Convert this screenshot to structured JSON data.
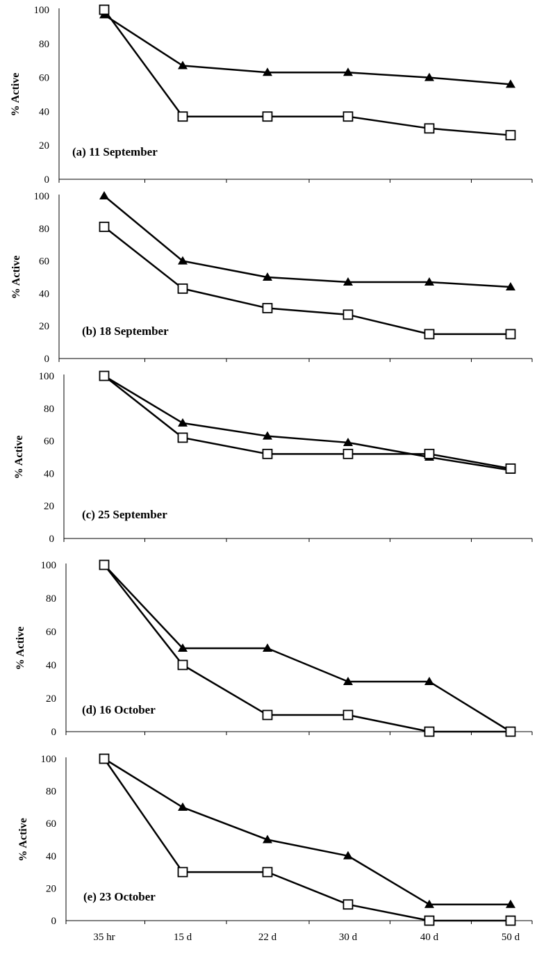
{
  "chart_data": [
    {
      "type": "line",
      "title": "(a) 11 September",
      "xlabel": "",
      "ylabel": "% Active",
      "ylim": [
        0,
        100
      ],
      "yticks": [
        0,
        20,
        40,
        60,
        80,
        100
      ],
      "categories": [
        "35 hr",
        "15 d",
        "22 d",
        "30 d",
        "40 d",
        "50 d"
      ],
      "grid": false,
      "series": [
        {
          "marker": "filled-triangle",
          "color": "#000000",
          "values": [
            97,
            67,
            63,
            63,
            60,
            56
          ]
        },
        {
          "marker": "open-square",
          "color": "#000000",
          "values": [
            100,
            37,
            37,
            37,
            30,
            26
          ]
        }
      ]
    },
    {
      "type": "line",
      "title": "(b) 18 September",
      "xlabel": "",
      "ylabel": "% Active",
      "ylim": [
        0,
        100
      ],
      "yticks": [
        0,
        20,
        40,
        60,
        80,
        100
      ],
      "categories": [
        "35 hr",
        "15 d",
        "22 d",
        "30 d",
        "40 d",
        "50 d"
      ],
      "grid": false,
      "series": [
        {
          "marker": "filled-triangle",
          "color": "#000000",
          "values": [
            100,
            60,
            50,
            47,
            47,
            44
          ]
        },
        {
          "marker": "open-square",
          "color": "#000000",
          "values": [
            81,
            43,
            31,
            27,
            15,
            15
          ]
        }
      ]
    },
    {
      "type": "line",
      "title": "(c) 25 September",
      "xlabel": "",
      "ylabel": "% Active",
      "ylim": [
        0,
        100
      ],
      "yticks": [
        0,
        20,
        40,
        60,
        80,
        100
      ],
      "categories": [
        "35 hr",
        "15 d",
        "22 d",
        "30 d",
        "40 d",
        "50 d"
      ],
      "grid": false,
      "series": [
        {
          "marker": "filled-triangle",
          "color": "#000000",
          "values": [
            100,
            71,
            63,
            59,
            50,
            42
          ]
        },
        {
          "marker": "open-square",
          "color": "#000000",
          "values": [
            100,
            62,
            52,
            52,
            52,
            43
          ]
        }
      ]
    },
    {
      "type": "line",
      "title": "(d) 16 October",
      "xlabel": "",
      "ylabel": "% Active",
      "ylim": [
        0,
        100
      ],
      "yticks": [
        0,
        20,
        40,
        60,
        80,
        100
      ],
      "categories": [
        "35 hr",
        "15 d",
        "22 d",
        "30 d",
        "40 d",
        "50 d"
      ],
      "grid": false,
      "series": [
        {
          "marker": "filled-triangle",
          "color": "#000000",
          "values": [
            100,
            50,
            50,
            30,
            30,
            0
          ]
        },
        {
          "marker": "open-square",
          "color": "#000000",
          "values": [
            100,
            40,
            10,
            10,
            0,
            0
          ]
        }
      ]
    },
    {
      "type": "line",
      "title": "(e) 23 October",
      "xlabel": "",
      "ylabel": "% Active",
      "ylim": [
        0,
        100
      ],
      "yticks": [
        0,
        20,
        40,
        60,
        80,
        100
      ],
      "categories": [
        "35 hr",
        "15 d",
        "22 d",
        "30 d",
        "40 d",
        "50 d"
      ],
      "show_category_labels": true,
      "grid": false,
      "series": [
        {
          "marker": "filled-triangle",
          "color": "#000000",
          "values": [
            100,
            70,
            50,
            40,
            10,
            10
          ]
        },
        {
          "marker": "open-square",
          "color": "#000000",
          "values": [
            100,
            30,
            30,
            10,
            0,
            0
          ]
        }
      ]
    }
  ]
}
